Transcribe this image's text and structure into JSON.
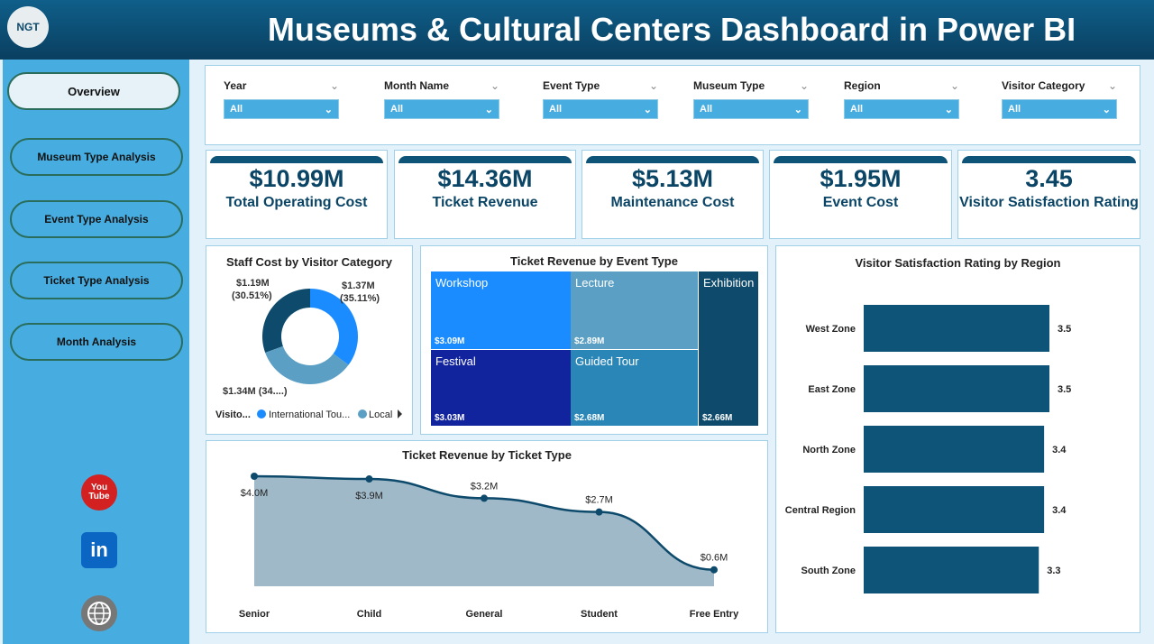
{
  "header": {
    "logo_text": "NGT",
    "title": "Museums & Cultural Centers Dashboard in Power BI"
  },
  "sidebar": {
    "items": [
      {
        "label": "Overview",
        "active": true
      },
      {
        "label": "Museum Type Analysis"
      },
      {
        "label": "Event Type Analysis"
      },
      {
        "label": "Ticket Type Analysis"
      },
      {
        "label": "Month Analysis"
      }
    ],
    "social": [
      {
        "icon": "youtube-icon",
        "label": "You Tube"
      },
      {
        "icon": "linkedin-icon",
        "label": "in"
      },
      {
        "icon": "globe-icon",
        "label": ""
      }
    ]
  },
  "filters": [
    {
      "label": "Year",
      "value": "All"
    },
    {
      "label": "Month Name",
      "value": "All"
    },
    {
      "label": "Event Type",
      "value": "All"
    },
    {
      "label": "Museum Type",
      "value": "All"
    },
    {
      "label": "Region",
      "value": "All"
    },
    {
      "label": "Visitor Category",
      "value": "All"
    }
  ],
  "kpis": [
    {
      "value": "$10.99M",
      "label": "Total Operating Cost"
    },
    {
      "value": "$14.36M",
      "label": "Ticket Revenue"
    },
    {
      "value": "$5.13M",
      "label": "Maintenance Cost"
    },
    {
      "value": "$1.95M",
      "label": "Event Cost"
    },
    {
      "value": "3.45",
      "label": "Visitor Satisfaction Rating"
    }
  ],
  "colors": {
    "header": "#0a3f60",
    "sidebar": "#47ade0",
    "kpi": "#0b4566",
    "bar": "#0d5478",
    "blue": "#1a8cff",
    "local": "#5b9fc4",
    "dark": "#0d4a6b"
  },
  "chart_data": [
    {
      "type": "pie",
      "title": "Staff Cost by Visitor Category",
      "legend_title": "Visito...",
      "legend": [
        "International Tou...",
        "Local"
      ],
      "slices": [
        {
          "name": "International Tourist",
          "value": 1.37,
          "label": "$1.37M",
          "pct": "(35.11%)",
          "color": "#1a8cff"
        },
        {
          "name": "Local",
          "value": 1.34,
          "label": "$1.34M (34....)",
          "color": "#5b9fc4"
        },
        {
          "name": "",
          "value": 1.19,
          "label": "$1.19M",
          "pct": "(30.51%)",
          "color": "#0d4a6b"
        }
      ]
    },
    {
      "type": "treemap",
      "title": "Ticket Revenue by Event Type",
      "items": [
        {
          "name": "Workshop",
          "label": "$3.09M",
          "value": 3.09,
          "color": "#1a8cff"
        },
        {
          "name": "Lecture",
          "label": "$2.89M",
          "value": 2.89,
          "color": "#5b9fc4"
        },
        {
          "name": "Exhibition",
          "label": "$2.66M",
          "value": 2.66,
          "color": "#0d4a6b"
        },
        {
          "name": "Festival",
          "label": "$3.03M",
          "value": 3.03,
          "color": "#12239e"
        },
        {
          "name": "Guided Tour",
          "label": "$2.68M",
          "value": 2.68,
          "color": "#2b86b8"
        }
      ]
    },
    {
      "type": "area",
      "title": "Ticket Revenue by Ticket Type",
      "categories": [
        "Senior",
        "Child",
        "General",
        "Student",
        "Free Entry"
      ],
      "values": [
        4.0,
        3.9,
        3.2,
        2.7,
        0.6
      ],
      "labels": [
        "$4.0M",
        "$3.9M",
        "$3.2M",
        "$2.7M",
        "$0.6M"
      ]
    },
    {
      "type": "bar",
      "orientation": "horizontal",
      "title": "Visitor Satisfaction Rating by Region",
      "categories": [
        "West Zone",
        "East Zone",
        "North Zone",
        "Central Region",
        "South Zone"
      ],
      "values": [
        3.5,
        3.5,
        3.4,
        3.4,
        3.3
      ],
      "labels": [
        "3.5",
        "3.5",
        "3.4",
        "3.4",
        "3.3"
      ]
    }
  ]
}
